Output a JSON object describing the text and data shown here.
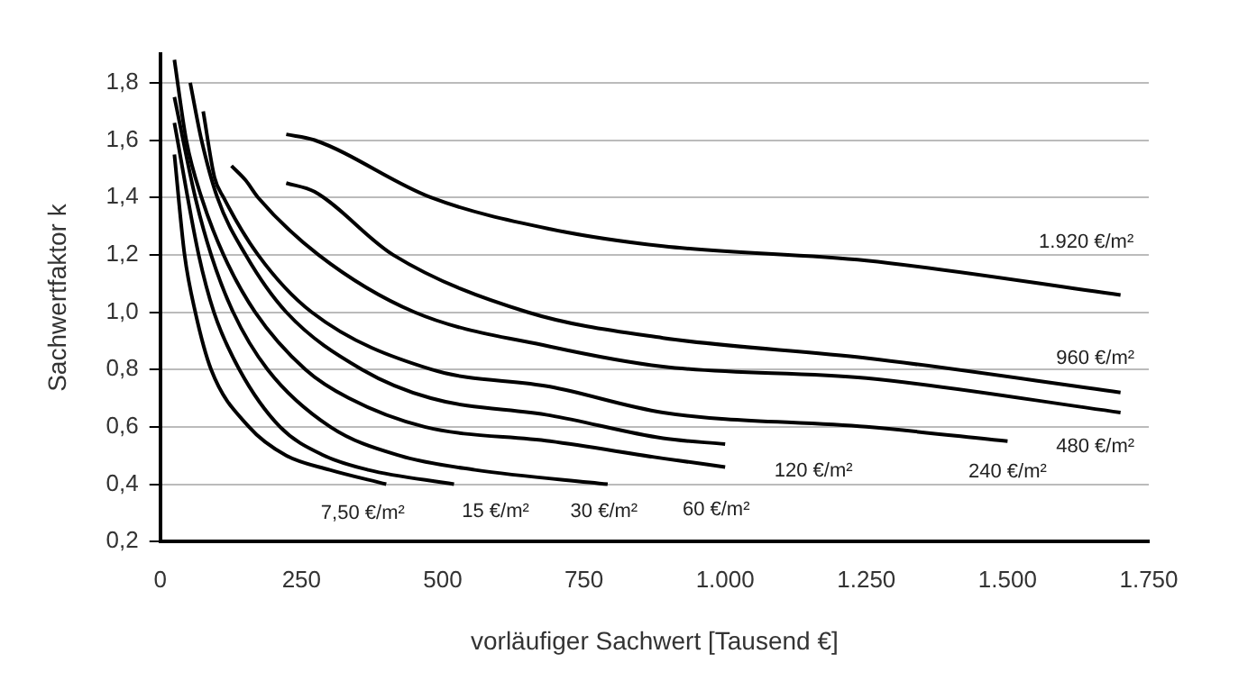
{
  "chart_data": {
    "type": "line",
    "xlabel": "vorläufiger Sachwert [Tausend €]",
    "ylabel": "Sachwertfaktor k",
    "xlim": [
      0,
      1750
    ],
    "ylim": [
      0.2,
      1.9
    ],
    "xticks": [
      0,
      250,
      500,
      750,
      {
        "value": 1000,
        "label": "1.000"
      },
      {
        "value": 1250,
        "label": "1.250"
      },
      {
        "value": 1500,
        "label": "1.500"
      },
      {
        "value": 1750,
        "label": "1.750"
      }
    ],
    "yticks": [
      {
        "value": 0.2,
        "label": "0,2"
      },
      {
        "value": 0.4,
        "label": "0,4"
      },
      {
        "value": 0.6,
        "label": "0,6"
      },
      {
        "value": 0.8,
        "label": "0,8"
      },
      {
        "value": 1.0,
        "label": "1,0"
      },
      {
        "value": 1.2,
        "label": "1,2"
      },
      {
        "value": 1.4,
        "label": "1,4"
      },
      {
        "value": 1.6,
        "label": "1,6"
      },
      {
        "value": 1.8,
        "label": "1,8"
      }
    ],
    "grid": "y",
    "legend": false,
    "marker": "none",
    "line_style": "solid",
    "series": [
      {
        "color": "#000000",
        "x": [
          25,
          43,
          62,
          90,
          157,
          223,
          300,
          400
        ],
        "values": [
          1.55,
          1.2,
          1.0,
          0.8,
          0.6,
          0.5,
          0.45,
          0.4
        ]
      },
      {
        "color": "#000000",
        "x": [
          25,
          68,
          95,
          140,
          212,
          290,
          368,
          520
        ],
        "values": [
          1.66,
          1.2,
          1.0,
          0.8,
          0.6,
          0.5,
          0.45,
          0.4
        ]
      },
      {
        "color": "#000000",
        "x": [
          25,
          62,
          90,
          129,
          190,
          301,
          423,
          557,
          792
        ],
        "values": [
          1.75,
          1.4,
          1.2,
          1.0,
          0.8,
          0.6,
          0.5,
          0.45,
          0.4
        ]
      },
      {
        "color": "#000000",
        "x": [
          25,
          46,
          73,
          112,
          168,
          257,
          334,
          468,
          690,
          890,
          1000
        ],
        "values": [
          1.88,
          1.6,
          1.4,
          1.2,
          1.0,
          0.8,
          0.7,
          0.6,
          0.55,
          0.49,
          0.46
        ]
      },
      {
        "color": "#000000",
        "x": [
          53,
          73,
          101,
          151,
          223,
          357,
          479,
          690,
          890,
          1000
        ],
        "values": [
          1.8,
          1.6,
          1.4,
          1.2,
          1.0,
          0.8,
          0.7,
          0.64,
          0.56,
          0.54
        ]
      },
      {
        "color": "#000000",
        "x": [
          76,
          96,
          112,
          173,
          268,
          480,
          690,
          890,
          1250,
          1500
        ],
        "values": [
          1.7,
          1.47,
          1.4,
          1.2,
          1.0,
          0.8,
          0.74,
          0.65,
          0.6,
          0.55
        ]
      },
      {
        "color": "#000000",
        "x": [
          126,
          151,
          173,
          280,
          450,
          690,
          890,
          1250,
          1700
        ],
        "values": [
          1.51,
          1.46,
          1.4,
          1.2,
          1.0,
          0.88,
          0.81,
          0.77,
          0.65
        ]
      },
      {
        "color": "#000000",
        "x": [
          223,
          273,
          412,
          650,
          890,
          1250,
          1700
        ],
        "values": [
          1.45,
          1.42,
          1.2,
          1.0,
          0.91,
          0.84,
          0.72
        ]
      },
      {
        "color": "#000000",
        "x": [
          223,
          273,
          479,
          690,
          890,
          1250,
          1700
        ],
        "values": [
          1.62,
          1.6,
          1.4,
          1.29,
          1.23,
          1.18,
          1.06
        ]
      }
    ],
    "annotations": [
      {
        "text": "7,50 €/m²",
        "x": 400,
        "y": 0.4
      },
      {
        "text": "15 €/m²",
        "x": 520,
        "y": 0.4
      },
      {
        "text": "30 €/m²",
        "x": 792,
        "y": 0.4
      },
      {
        "text": "60 €/m²",
        "x": 1000,
        "y": 0.46
      },
      {
        "text": "120 €/m²",
        "x": 1000,
        "y": 0.54
      },
      {
        "text": "240 €/m²",
        "x": 1500,
        "y": 0.55
      },
      {
        "text": "480 €/m²",
        "x": 1700,
        "y": 0.65
      },
      {
        "text": "960 €/m²",
        "x": 1700,
        "y": 0.72
      },
      {
        "text": "1.920 €/m²",
        "x": 1700,
        "y": 1.06
      }
    ]
  }
}
